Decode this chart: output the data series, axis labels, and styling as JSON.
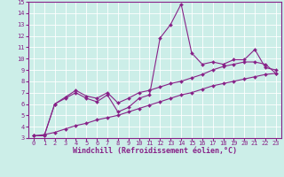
{
  "xlabel": "Windchill (Refroidissement éolien,°C)",
  "background_color": "#cceee8",
  "line_color": "#882288",
  "grid_color": "#ffffff",
  "xlim": [
    -0.5,
    23.5
  ],
  "ylim": [
    3,
    15
  ],
  "xticks": [
    0,
    1,
    2,
    3,
    4,
    5,
    6,
    7,
    8,
    9,
    10,
    11,
    12,
    13,
    14,
    15,
    16,
    17,
    18,
    19,
    20,
    21,
    22,
    23
  ],
  "yticks": [
    3,
    4,
    5,
    6,
    7,
    8,
    9,
    10,
    11,
    12,
    13,
    14,
    15
  ],
  "line1_x": [
    0,
    1,
    2,
    3,
    4,
    5,
    6,
    7,
    8,
    9,
    10,
    11,
    12,
    13,
    14,
    15,
    16,
    17,
    18,
    19,
    20,
    21,
    22,
    23
  ],
  "line1_y": [
    3.2,
    3.2,
    6.0,
    6.5,
    7.0,
    6.5,
    6.2,
    6.8,
    5.3,
    5.7,
    6.5,
    6.8,
    11.8,
    13.0,
    14.8,
    10.5,
    9.5,
    9.7,
    9.5,
    9.9,
    9.9,
    10.8,
    9.2,
    9.0
  ],
  "line2_x": [
    0,
    1,
    2,
    3,
    4,
    5,
    6,
    7,
    8,
    9,
    10,
    11,
    12,
    13,
    14,
    15,
    16,
    17,
    18,
    19,
    20,
    21,
    22,
    23
  ],
  "line2_y": [
    3.2,
    3.2,
    6.0,
    6.6,
    7.2,
    6.7,
    6.5,
    7.0,
    6.1,
    6.5,
    7.0,
    7.2,
    7.5,
    7.8,
    8.0,
    8.3,
    8.6,
    9.0,
    9.3,
    9.5,
    9.7,
    9.7,
    9.5,
    8.7
  ],
  "line3_x": [
    0,
    1,
    2,
    3,
    4,
    5,
    6,
    7,
    8,
    9,
    10,
    11,
    12,
    13,
    14,
    15,
    16,
    17,
    18,
    19,
    20,
    21,
    22,
    23
  ],
  "line3_y": [
    3.2,
    3.3,
    3.5,
    3.8,
    4.1,
    4.3,
    4.6,
    4.8,
    5.0,
    5.3,
    5.6,
    5.9,
    6.2,
    6.5,
    6.8,
    7.0,
    7.3,
    7.6,
    7.8,
    8.0,
    8.2,
    8.4,
    8.6,
    8.7
  ],
  "marker": "D",
  "marker_size": 2,
  "line_width": 0.8,
  "tick_fontsize": 5,
  "label_fontsize": 6
}
